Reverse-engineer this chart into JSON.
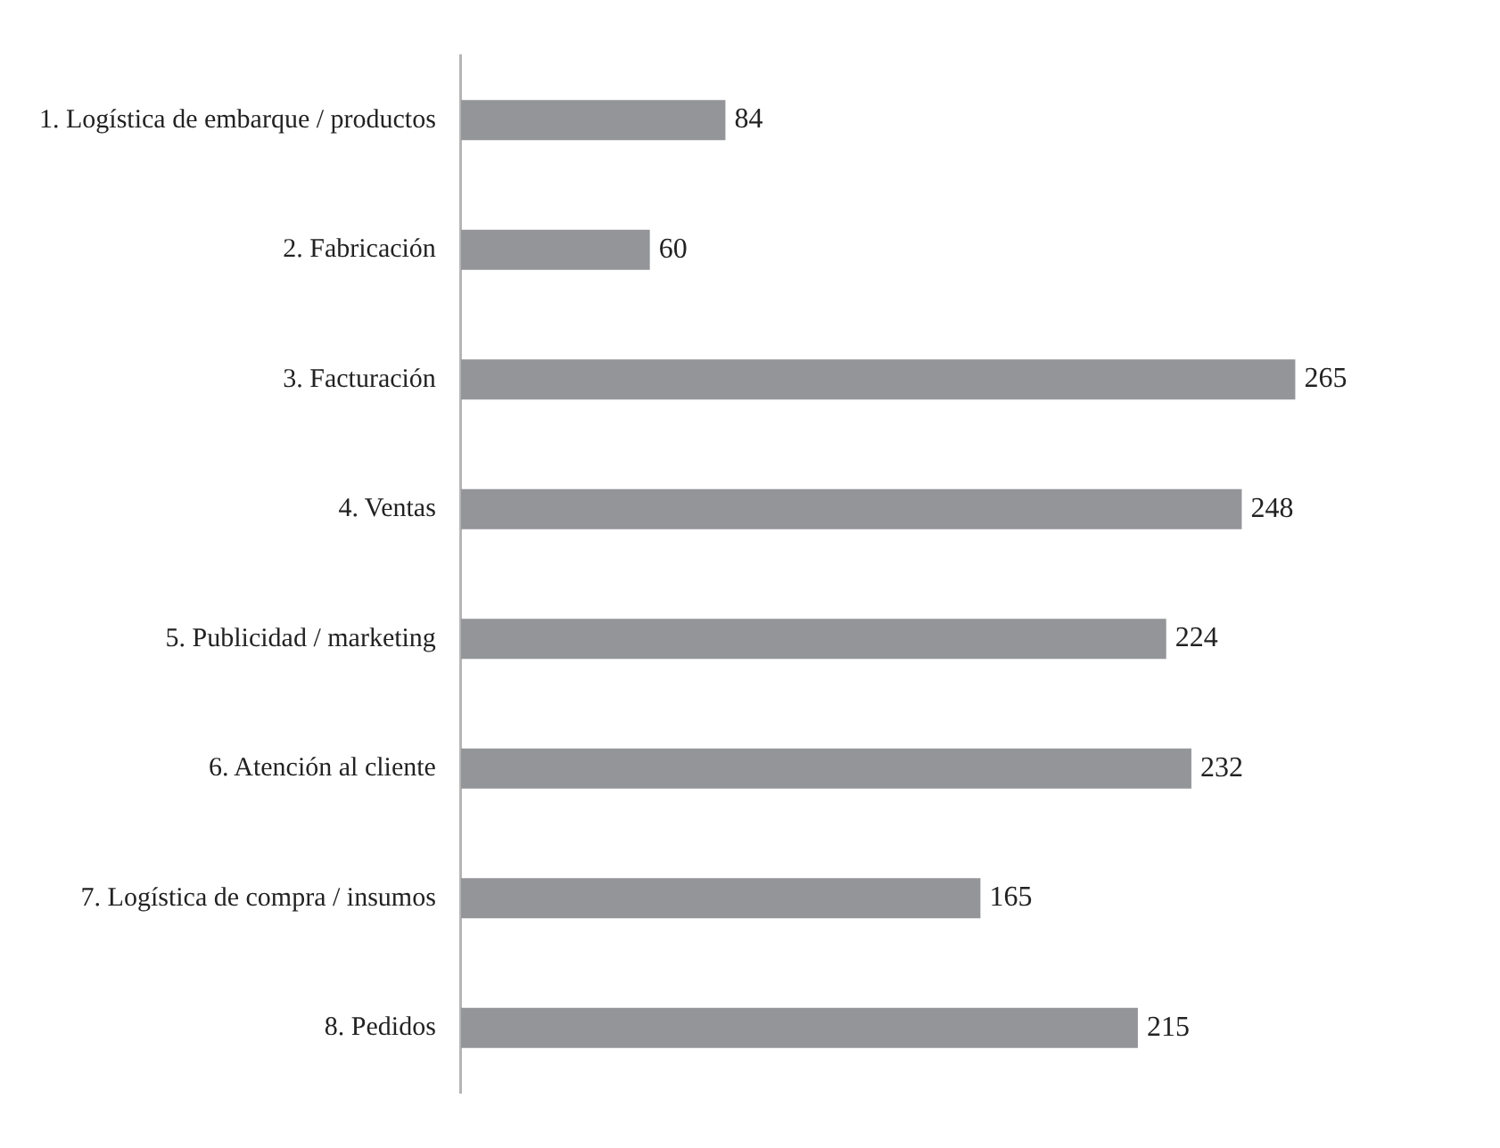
{
  "chart_data": {
    "type": "bar",
    "orientation": "horizontal",
    "categories": [
      "1. Logística de embarque / productos",
      "2. Fabricación",
      "3. Facturación",
      "4. Ventas",
      "5. Publicidad / marketing",
      "6. Atención al cliente",
      "7. Logística de compra / insumos",
      "8. Pedidos"
    ],
    "values": [
      84,
      60,
      265,
      248,
      224,
      232,
      165,
      215
    ],
    "color": "#939598",
    "data_labels": true,
    "legend": false,
    "tick_labels": "y"
  }
}
